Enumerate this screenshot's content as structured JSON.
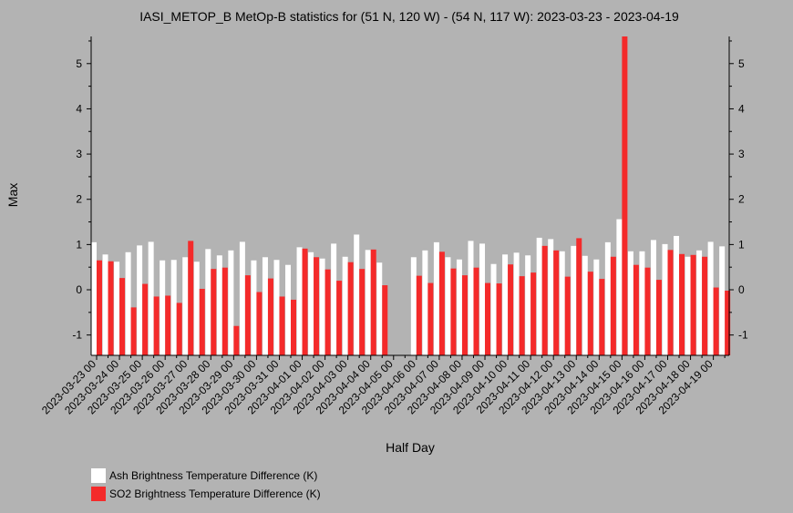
{
  "chart_data": {
    "type": "bar",
    "title": "IASI_METOP_B MetOp-B statistics for (51 N, 120 W) - (54 N, 117 W): 2023-03-23 - 2023-04-19",
    "xlabel": "Half Day",
    "ylabel": "Max",
    "ylim": [
      -1.45,
      5.6
    ],
    "yticks": [
      -1,
      0,
      1,
      2,
      3,
      4,
      5
    ],
    "ytick_labels": [
      "-1",
      "0",
      "1",
      "2",
      "3",
      "4",
      "5"
    ],
    "x_ticks": [
      "2023-03-23 00",
      "2023-03-24 00",
      "2023-03-25 00",
      "2023-03-26 00",
      "2023-03-27 00",
      "2023-03-28 00",
      "2023-03-29 00",
      "2023-03-30 00",
      "2023-03-31 00",
      "2023-04-01 00",
      "2023-04-02 00",
      "2023-04-03 00",
      "2023-04-04 00",
      "2023-04-05 00",
      "2023-04-06 00",
      "2023-04-07 00",
      "2023-04-08 00",
      "2023-04-09 00",
      "2023-04-10 00",
      "2023-04-11 00",
      "2023-04-12 00",
      "2023-04-13 00",
      "2023-04-14 00",
      "2023-04-15 00",
      "2023-04-16 00",
      "2023-04-17 00",
      "2023-04-18 00",
      "2023-04-19 00"
    ],
    "grid": false,
    "legend_position": "bottom-left",
    "series": [
      {
        "name": "Ash Brightness Temperature Difference (K)",
        "color": "#ffffff",
        "values": [
          1.05,
          0.78,
          0.62,
          0.83,
          0.98,
          1.06,
          0.65,
          0.66,
          0.72,
          0.62,
          0.9,
          0.76,
          0.87,
          1.06,
          0.65,
          0.72,
          0.66,
          0.55,
          0.94,
          0.83,
          0.69,
          1.02,
          0.73,
          1.22,
          0.88,
          0.6,
          null,
          null,
          0.72,
          0.87,
          1.05,
          0.72,
          0.67,
          1.08,
          1.02,
          0.57,
          0.78,
          0.82,
          0.76,
          1.15,
          1.12,
          0.85,
          0.97,
          0.75,
          0.67,
          1.05,
          1.56,
          0.85,
          0.85,
          1.1,
          1.01,
          1.19,
          0.73,
          0.87,
          1.06,
          0.96
        ]
      },
      {
        "name": "SO2 Brightness Temperature Difference (K)",
        "color": "#f42a2a",
        "values": [
          0.65,
          0.63,
          0.26,
          -0.39,
          0.13,
          -0.15,
          -0.13,
          -0.29,
          1.08,
          0.02,
          0.46,
          0.49,
          -0.8,
          0.32,
          -0.05,
          0.25,
          -0.15,
          -0.22,
          0.91,
          0.72,
          0.45,
          0.2,
          0.61,
          0.46,
          0.89,
          0.1,
          null,
          null,
          0.31,
          0.15,
          0.84,
          0.47,
          0.32,
          0.49,
          0.15,
          0.14,
          0.56,
          0.3,
          0.38,
          0.97,
          0.87,
          0.29,
          1.14,
          0.4,
          0.24,
          0.73,
          5.6,
          0.55,
          0.49,
          0.22,
          0.88,
          0.79,
          0.77,
          0.73,
          0.05,
          -0.02
        ]
      }
    ]
  }
}
